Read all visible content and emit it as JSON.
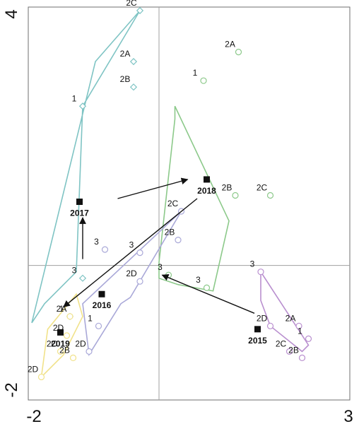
{
  "chart_data": {
    "type": "scatter",
    "title": "",
    "xlabel": "",
    "ylabel": "",
    "xlim": [
      -2,
      3
    ],
    "ylim": [
      -2,
      4
    ],
    "x_ticks": [
      {
        "value": -2,
        "label": "-2"
      },
      {
        "value": 3,
        "label": "3"
      }
    ],
    "y_ticks": [
      {
        "value": -2,
        "label": "-2"
      },
      {
        "value": 4,
        "label": "4"
      }
    ],
    "reference_lines": {
      "x": 0,
      "y": 0
    },
    "grid": false,
    "series": [
      {
        "color": "#8cc98a",
        "marker": "circle",
        "hull": [
          [
            0.25,
            2.5
          ],
          [
            1.1,
            0.7
          ],
          [
            0.85,
            -0.4
          ],
          [
            0.3,
            -0.3
          ],
          [
            0,
            -0.2
          ],
          [
            0,
            0.05
          ],
          [
            0.25,
            2.3
          ]
        ],
        "points": [
          {
            "x": 1.25,
            "y": 3.35,
            "label": "2A"
          },
          {
            "x": 0.7,
            "y": 2.9,
            "label": "1"
          },
          {
            "x": 1.2,
            "y": 1.1,
            "label": "2B"
          },
          {
            "x": 1.75,
            "y": 1.1,
            "label": "2C"
          },
          {
            "x": 0.15,
            "y": -0.15,
            "label": "3"
          },
          {
            "x": 0.75,
            "y": -0.35,
            "label": "3"
          }
        ]
      },
      {
        "color": "#7fc4c4",
        "marker": "diamond",
        "hull": [
          [
            -1.2,
            2.5
          ],
          [
            -0.3,
            4.0
          ],
          [
            -1.0,
            3.2
          ],
          [
            -2.0,
            -0.9
          ],
          [
            -1.8,
            -0.6
          ],
          [
            -1.3,
            -0.1
          ]
        ],
        "points": [
          {
            "x": -0.3,
            "y": 4.0,
            "label": "2C"
          },
          {
            "x": -0.4,
            "y": 3.2,
            "label": "2A"
          },
          {
            "x": -0.4,
            "y": 2.8,
            "label": "2B"
          },
          {
            "x": -1.2,
            "y": 2.5,
            "label": "1"
          },
          {
            "x": -1.4,
            "y": -0.8,
            "label": "2A"
          },
          {
            "x": -1.2,
            "y": -0.2,
            "label": "3"
          }
        ]
      },
      {
        "color": "#a9a8d8",
        "marker": "circle",
        "hull": [
          [
            -0.45,
            -0.5
          ],
          [
            0.35,
            0.85
          ],
          [
            -1.2,
            -0.6
          ],
          [
            -1.1,
            -1.4
          ],
          [
            -0.6,
            -0.6
          ]
        ],
        "points": [
          {
            "x": 0.35,
            "y": 0.85,
            "label": "2C"
          },
          {
            "x": 0.3,
            "y": 0.4,
            "label": "2B"
          },
          {
            "x": -0.3,
            "y": 0.2,
            "label": "3"
          },
          {
            "x": -0.85,
            "y": 0.25,
            "label": "3"
          },
          {
            "x": -0.3,
            "y": -0.25,
            "label": "2D"
          },
          {
            "x": -0.95,
            "y": -0.95,
            "label": "1"
          },
          {
            "x": -1.1,
            "y": -1.35,
            "label": "2D"
          }
        ]
      },
      {
        "color": "#b98fcf",
        "marker": "circle",
        "hull": [
          [
            1.6,
            -0.1
          ],
          [
            2.35,
            -1.25
          ],
          [
            2.25,
            -1.35
          ],
          [
            1.75,
            -0.95
          ],
          [
            1.6,
            -0.55
          ]
        ],
        "points": [
          {
            "x": 1.6,
            "y": -0.1,
            "label": "3"
          },
          {
            "x": 2.2,
            "y": -0.95,
            "label": "2A"
          },
          {
            "x": 2.35,
            "y": -1.15,
            "label": "1"
          },
          {
            "x": 2.05,
            "y": -1.35,
            "label": "2C"
          },
          {
            "x": 2.25,
            "y": -1.45,
            "label": "2B"
          },
          {
            "x": 1.75,
            "y": -0.95,
            "label": "2D"
          }
        ]
      },
      {
        "color": "#f1e28a",
        "marker": "circle",
        "hull": [
          [
            -1.3,
            -0.45
          ],
          [
            -1.2,
            -0.8
          ],
          [
            -1.5,
            -1.4
          ],
          [
            -1.85,
            -1.75
          ],
          [
            -1.75,
            -1.0
          ]
        ],
        "points": [
          {
            "x": -1.45,
            "y": -1.1,
            "label": "2D"
          },
          {
            "x": -1.55,
            "y": -1.35,
            "label": "2C"
          },
          {
            "x": -1.35,
            "y": -1.45,
            "label": "2B"
          },
          {
            "x": -1.85,
            "y": -1.75,
            "label": "2D"
          },
          {
            "x": -1.4,
            "y": -0.8,
            "label": "1"
          }
        ]
      }
    ],
    "centroids": [
      {
        "x": 1.55,
        "y": -1.0,
        "label": "2015"
      },
      {
        "x": -0.9,
        "y": -0.45,
        "label": "2016"
      },
      {
        "x": -1.55,
        "y": -1.05,
        "label": "2019"
      },
      {
        "x": -1.25,
        "y": 1.0,
        "label": "2017"
      },
      {
        "x": 0.75,
        "y": 1.35,
        "label": "2018"
      }
    ],
    "arrows": [
      {
        "from": [
          1.5,
          -0.75
        ],
        "to": [
          0.05,
          -0.15
        ]
      },
      {
        "from": [
          -1.2,
          0.1
        ],
        "to": [
          -1.2,
          0.75
        ]
      },
      {
        "from": [
          -0.65,
          1.05
        ],
        "to": [
          0.45,
          1.35
        ]
      },
      {
        "from": [
          0.6,
          1.05
        ],
        "to": [
          -1.5,
          -0.65
        ]
      }
    ]
  }
}
